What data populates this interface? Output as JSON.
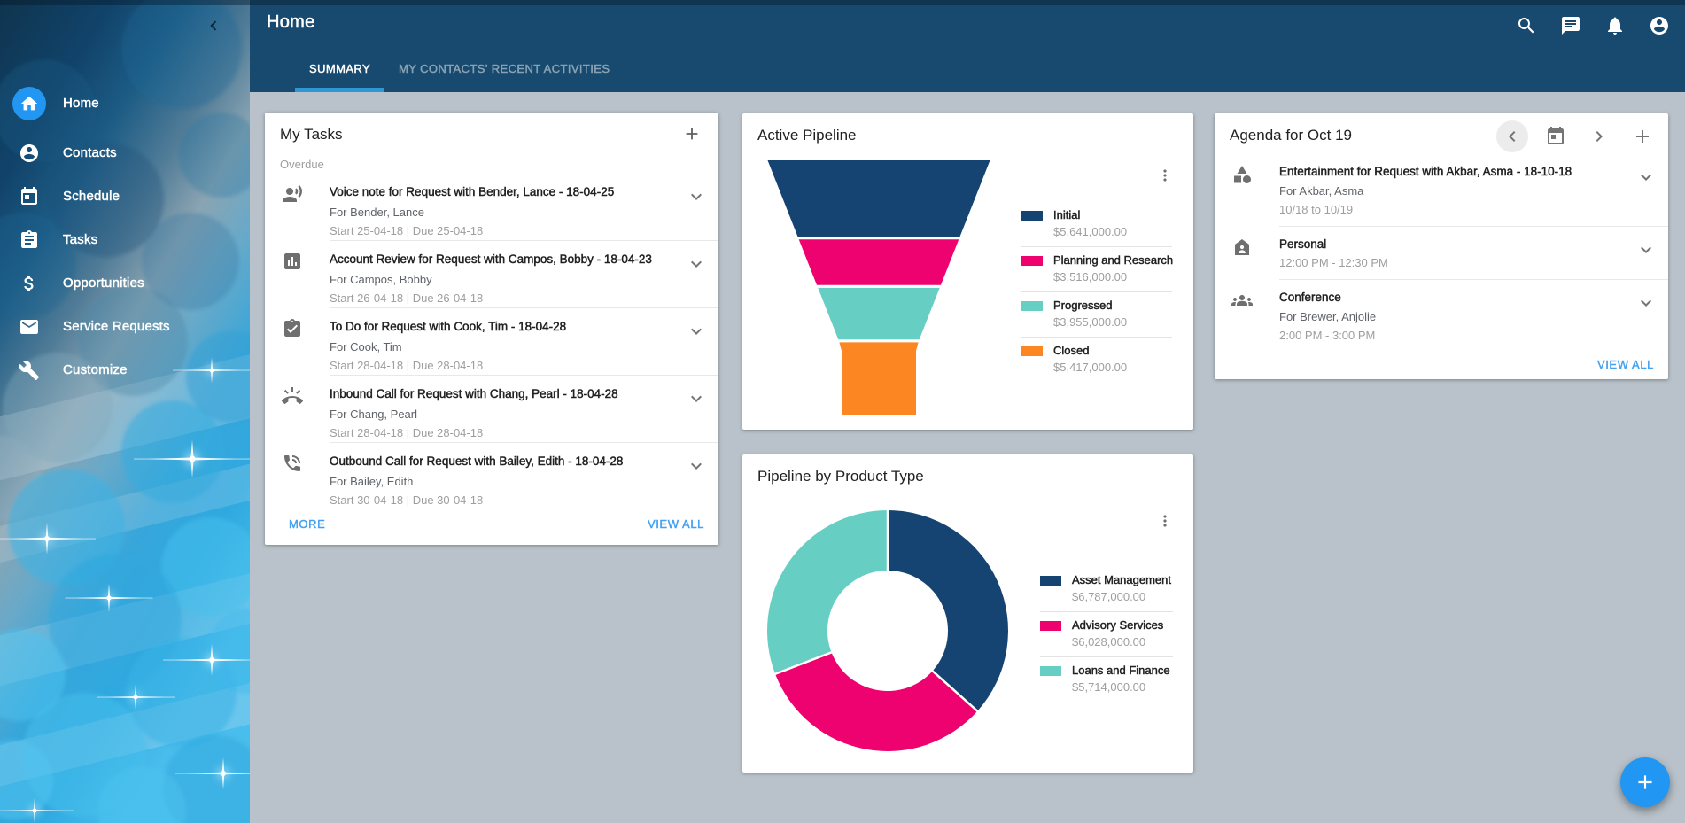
{
  "colors": {
    "topbar": "#174a6e",
    "content_bg": "#b9c2ca",
    "accent_blue": "#2196f3",
    "tab_underline": "#2f97d4",
    "link_blue": "#45a2ef",
    "navy": "#164472",
    "pink": "#ed0270",
    "teal": "#67cec3",
    "orange": "#fc8722"
  },
  "sidebar": {
    "collapse_icon": "chevron-left",
    "items": [
      {
        "label": "Home",
        "icon": "home",
        "active": true
      },
      {
        "label": "Contacts",
        "icon": "account-circle",
        "active": false
      },
      {
        "label": "Schedule",
        "icon": "calendar",
        "active": false
      },
      {
        "label": "Tasks",
        "icon": "assignment",
        "active": false
      },
      {
        "label": "Opportunities",
        "icon": "dollar",
        "active": false
      },
      {
        "label": "Service Requests",
        "icon": "mail",
        "active": false
      },
      {
        "label": "Customize",
        "icon": "wrench",
        "active": false
      }
    ]
  },
  "topbar": {
    "title": "Home",
    "tabs": [
      {
        "label": "SUMMARY",
        "active": true
      },
      {
        "label": "MY CONTACTS' RECENT ACTIVITIES",
        "active": false
      }
    ],
    "icons": [
      "search",
      "chat",
      "bell",
      "account-circle"
    ]
  },
  "tasks_card": {
    "title": "My Tasks",
    "section_label": "Overdue",
    "more_label": "MORE",
    "view_all_label": "VIEW ALL",
    "items": [
      {
        "icon": "record-voice-over",
        "title": "Voice note for Request with Bender, Lance - 18-04-25",
        "subtitle": "For Bender, Lance",
        "dates": "Start 25-04-18 | Due 25-04-18"
      },
      {
        "icon": "assessment",
        "title": "Account Review for Request with Campos, Bobby - 18-04-23",
        "subtitle": "For Campos, Bobby",
        "dates": "Start 26-04-18 | Due 26-04-18"
      },
      {
        "icon": "assignment-turned-in",
        "title": "To Do for Request with Cook, Tim - 18-04-28",
        "subtitle": "For Cook, Tim",
        "dates": "Start 28-04-18 | Due 28-04-18"
      },
      {
        "icon": "ring-volume",
        "title": "Inbound Call for Request with Chang, Pearl - 18-04-28",
        "subtitle": "For Chang, Pearl",
        "dates": "Start 28-04-18 | Due 28-04-18"
      },
      {
        "icon": "phone-in-talk",
        "title": "Outbound Call for Request with Bailey, Edith - 18-04-28",
        "subtitle": "For Bailey, Edith",
        "dates": "Start 30-04-18 | Due 30-04-18"
      }
    ]
  },
  "agenda_card": {
    "title": "Agenda for Oct 19",
    "view_all_label": "VIEW ALL",
    "controls": [
      "chevron-left",
      "calendar",
      "chevron-right",
      "plus"
    ],
    "items": [
      {
        "icon": "category",
        "title": "Entertainment for Request with Akbar, Asma - 18-10-18",
        "subtitle": "For Akbar, Asma",
        "time": "10/18 to 10/19"
      },
      {
        "icon": "home-person",
        "title": "Personal",
        "subtitle": "",
        "time": "12:00 PM - 12:30 PM"
      },
      {
        "icon": "groups",
        "title": "Conference",
        "subtitle": "For Brewer, Anjolie",
        "time": "2:00 PM - 3:00 PM"
      }
    ]
  },
  "chart_data": [
    {
      "type": "funnel",
      "title": "Active Pipeline",
      "legend_position": "right",
      "series": [
        {
          "name": "Initial",
          "value": 5641000,
          "label": "$5,641,000.00",
          "color": "#164472"
        },
        {
          "name": "Planning and Research",
          "value": 3516000,
          "label": "$3,516,000.00",
          "color": "#ed0270"
        },
        {
          "name": "Progressed",
          "value": 3955000,
          "label": "$3,955,000.00",
          "color": "#67cec3"
        },
        {
          "name": "Closed",
          "value": 5417000,
          "label": "$5,417,000.00",
          "color": "#fc8722"
        }
      ]
    },
    {
      "type": "donut",
      "title": "Pipeline by Product Type",
      "legend_position": "right",
      "series": [
        {
          "name": "Asset Management",
          "value": 6787000,
          "label": "$6,787,000.00",
          "color": "#164472"
        },
        {
          "name": "Advisory Services",
          "value": 6028000,
          "label": "$6,028,000.00",
          "color": "#ed0270"
        },
        {
          "name": "Loans and Finance",
          "value": 5714000,
          "label": "$5,714,000.00",
          "color": "#67cec3"
        }
      ]
    }
  ],
  "fab": {
    "icon": "plus"
  }
}
